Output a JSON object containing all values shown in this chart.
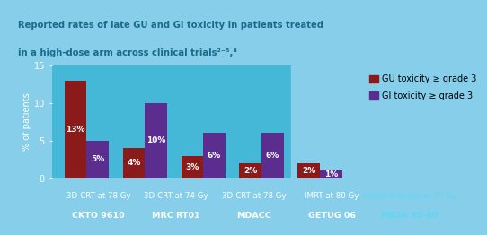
{
  "title_line1": "Reported rates of late GU and GI toxicity in patients treated",
  "title_line2": "in a high-dose arm across clinical trials²⁻⁵,⁸",
  "groups": [
    {
      "label_line1": "3D-CRT at 78 Gy",
      "label_line2": "CKTO 9610",
      "gu": 13,
      "gi": 5
    },
    {
      "label_line1": "3D-CRT at 74 Gy",
      "label_line2": "MRC RT01",
      "gu": 4,
      "gi": 10
    },
    {
      "label_line1": "3D-CRT at 78 Gy",
      "label_line2": "MDACC",
      "gu": 3,
      "gi": 6
    },
    {
      "label_line1": "IMRT at 80 Gy",
      "label_line2": "GETUG 06",
      "gu": 2,
      "gi": 6
    },
    {
      "label_line1": "Proton therapy at 79 Gy",
      "label_line2": "PROG 95-09",
      "gu": 2,
      "gi": 1
    }
  ],
  "gu_color": "#8B1A1A",
  "gi_color": "#5B2D8E",
  "bg_color_chart": "#45B8D8",
  "bg_color_title": "#87CEEB",
  "bg_color_dark": "#1A1A1A",
  "bg_color_proton": "#87CEEB",
  "bg_color_legend": "#87CEEB",
  "title_color": "#1A6A8A",
  "ylabel": "% of patients",
  "ylim": [
    0,
    15
  ],
  "yticks": [
    0,
    5,
    10,
    15
  ],
  "bar_width": 0.38,
  "legend_gu_label": "GU toxicity ≥ grade 3",
  "legend_gi_label": "GI toxicity ≥ grade 3",
  "title_fontsize": 7.2,
  "axis_fontsize": 7,
  "label_fontsize": 6.2,
  "label_fontsize2": 6.8,
  "bar_label_fontsize": 6.5,
  "legend_fontsize": 7
}
